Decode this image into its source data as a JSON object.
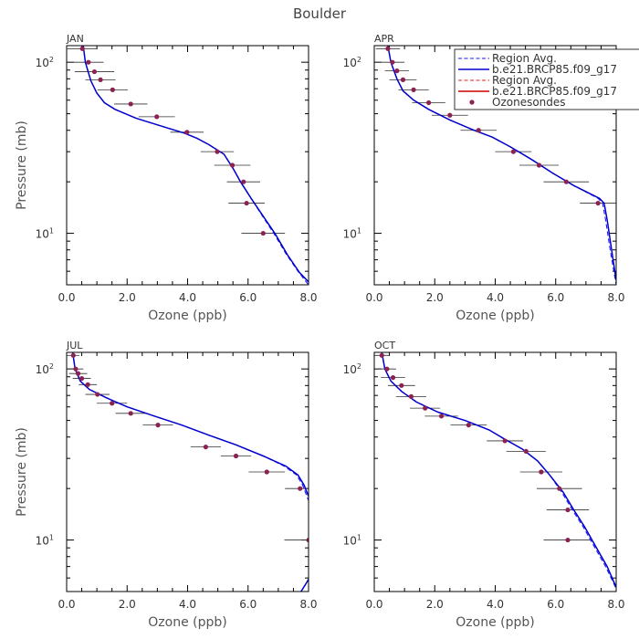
{
  "figure_title": "Boulder",
  "chart_data": [
    {
      "type": "line",
      "panel": "JAN",
      "xlabel": "Ozone (ppb)",
      "ylabel": "Pressure (mb)",
      "xlim": [
        0,
        8
      ],
      "x_ticks": [
        "0.0",
        "2.0",
        "4.0",
        "6.0",
        "8.0"
      ],
      "ylim_mb": [
        125,
        5
      ],
      "y_scale": "log",
      "y_tick_labels": [
        {
          "value": 10,
          "base": "10",
          "exp": "1"
        },
        {
          "value": 100,
          "base": "10",
          "exp": "2"
        }
      ],
      "series": [
        {
          "name": "Region Avg.",
          "style": "dashed",
          "color": "#1a1aff",
          "points": [
            [
              0.55,
              125
            ],
            [
              0.62,
              100
            ],
            [
              0.8,
              78
            ],
            [
              1.0,
              66
            ],
            [
              1.25,
              58
            ],
            [
              1.6,
              53
            ],
            [
              2.3,
              47
            ],
            [
              3.2,
              42
            ],
            [
              3.9,
              38.5
            ],
            [
              4.3,
              36
            ],
            [
              4.7,
              33
            ],
            [
              5.2,
              29
            ],
            [
              5.5,
              24
            ],
            [
              5.75,
              20
            ],
            [
              6.1,
              16
            ],
            [
              6.45,
              12.8
            ],
            [
              6.85,
              10
            ],
            [
              7.25,
              7.6
            ],
            [
              7.65,
              6
            ],
            [
              8.0,
              5.0
            ]
          ]
        },
        {
          "name": "b.e21.BRCP85.f09_g17",
          "style": "solid",
          "color": "#0000cc",
          "points": [
            [
              0.55,
              125
            ],
            [
              0.62,
              100
            ],
            [
              0.8,
              78
            ],
            [
              1.0,
              66
            ],
            [
              1.25,
              58
            ],
            [
              1.6,
              53
            ],
            [
              2.3,
              47
            ],
            [
              3.2,
              42
            ],
            [
              3.9,
              38.5
            ],
            [
              4.3,
              36
            ],
            [
              4.7,
              33
            ],
            [
              5.2,
              29
            ],
            [
              5.5,
              24
            ],
            [
              5.75,
              20
            ],
            [
              6.1,
              16
            ],
            [
              6.5,
              12.6
            ],
            [
              6.9,
              9.9
            ],
            [
              7.3,
              7.5
            ],
            [
              7.7,
              5.9
            ],
            [
              8.0,
              5.2
            ]
          ]
        }
      ],
      "ozonesondes": [
        {
          "x": 0.52,
          "p": 120,
          "err": 0.5
        },
        {
          "x": 0.72,
          "p": 100,
          "err": 0.5
        },
        {
          "x": 0.92,
          "p": 88,
          "err": 0.65
        },
        {
          "x": 1.12,
          "p": 79,
          "err": 0.5
        },
        {
          "x": 1.52,
          "p": 69,
          "err": 0.5
        },
        {
          "x": 2.12,
          "p": 57,
          "err": 0.55
        },
        {
          "x": 2.98,
          "p": 48,
          "err": 0.6
        },
        {
          "x": 3.98,
          "p": 39,
          "err": 0.55
        },
        {
          "x": 4.98,
          "p": 30,
          "err": 0.55
        },
        {
          "x": 5.48,
          "p": 25,
          "err": 0.6
        },
        {
          "x": 5.85,
          "p": 20,
          "err": 0.55
        },
        {
          "x": 5.95,
          "p": 15,
          "err": 0.6
        },
        {
          "x": 6.5,
          "p": 10,
          "err": 0.72
        }
      ]
    },
    {
      "type": "line",
      "panel": "APR",
      "xlabel": "Ozone (ppb)",
      "ylabel": "",
      "xlim": [
        0,
        8
      ],
      "x_ticks": [
        "0.0",
        "2.0",
        "4.0",
        "6.0",
        "8.0"
      ],
      "ylim_mb": [
        125,
        5
      ],
      "y_scale": "log",
      "y_tick_labels": [
        {
          "value": 10,
          "base": "10",
          "exp": "1"
        },
        {
          "value": 100,
          "base": "10",
          "exp": "2"
        }
      ],
      "series": [
        {
          "name": "Region Avg.",
          "style": "dashed",
          "color": "#1a1aff",
          "points": [
            [
              0.45,
              125
            ],
            [
              0.55,
              100
            ],
            [
              0.75,
              80
            ],
            [
              0.95,
              68
            ],
            [
              1.3,
              60
            ],
            [
              1.8,
              53
            ],
            [
              2.5,
              46
            ],
            [
              3.3,
              40
            ],
            [
              3.9,
              36.5
            ],
            [
              4.5,
              32
            ],
            [
              5.2,
              27
            ],
            [
              5.9,
              22.5
            ],
            [
              6.6,
              19
            ],
            [
              7.4,
              16
            ],
            [
              7.55,
              15
            ],
            [
              7.65,
              12
            ],
            [
              7.8,
              8
            ],
            [
              8.0,
              5.0
            ]
          ]
        },
        {
          "name": "b.e21.BRCP85.f09_g17",
          "style": "solid",
          "color": "#0000cc",
          "points": [
            [
              0.45,
              125
            ],
            [
              0.55,
              100
            ],
            [
              0.75,
              80
            ],
            [
              0.95,
              68
            ],
            [
              1.3,
              60
            ],
            [
              1.8,
              53
            ],
            [
              2.5,
              46
            ],
            [
              3.3,
              40
            ],
            [
              3.9,
              36.5
            ],
            [
              4.5,
              32
            ],
            [
              5.2,
              27
            ],
            [
              5.9,
              22.5
            ],
            [
              6.6,
              19
            ],
            [
              7.45,
              16
            ],
            [
              7.6,
              15
            ],
            [
              7.7,
              12
            ],
            [
              7.85,
              8
            ],
            [
              8.0,
              5.3
            ]
          ]
        }
      ],
      "ozonesondes": [
        {
          "x": 0.45,
          "p": 120,
          "err": 0.4
        },
        {
          "x": 0.6,
          "p": 100,
          "err": 0.4
        },
        {
          "x": 0.75,
          "p": 89,
          "err": 0.4
        },
        {
          "x": 0.95,
          "p": 79,
          "err": 0.45
        },
        {
          "x": 1.3,
          "p": 69,
          "err": 0.5
        },
        {
          "x": 1.8,
          "p": 58,
          "err": 0.55
        },
        {
          "x": 2.5,
          "p": 49,
          "err": 0.6
        },
        {
          "x": 3.45,
          "p": 40,
          "err": 0.6
        },
        {
          "x": 4.6,
          "p": 30,
          "err": 0.6
        },
        {
          "x": 5.45,
          "p": 25,
          "err": 0.65
        },
        {
          "x": 6.35,
          "p": 20,
          "err": 0.75
        },
        {
          "x": 7.4,
          "p": 15,
          "err": 0.6
        }
      ]
    },
    {
      "type": "line",
      "panel": "JUL",
      "xlabel": "Ozone (ppb)",
      "ylabel": "Pressure (mb)",
      "xlim": [
        0,
        8
      ],
      "x_ticks": [
        "0.0",
        "2.0",
        "4.0",
        "6.0",
        "8.0"
      ],
      "ylim_mb": [
        125,
        5
      ],
      "y_scale": "log",
      "y_tick_labels": [
        {
          "value": 10,
          "base": "10",
          "exp": "1"
        },
        {
          "value": 100,
          "base": "10",
          "exp": "2"
        }
      ],
      "series": [
        {
          "name": "Region Avg.",
          "style": "dashed",
          "color": "#1a1aff",
          "points": [
            [
              0.2,
              125
            ],
            [
              0.28,
              100
            ],
            [
              0.45,
              85
            ],
            [
              0.75,
              76
            ],
            [
              1.3,
              68
            ],
            [
              2.0,
              60
            ],
            [
              2.9,
              53
            ],
            [
              3.8,
              47
            ],
            [
              4.7,
              41
            ],
            [
              5.6,
              36
            ],
            [
              6.5,
              31
            ],
            [
              7.2,
              27
            ],
            [
              7.6,
              24
            ],
            [
              7.8,
              21
            ],
            [
              8.0,
              17
            ]
          ]
        },
        {
          "name": "b.e21.BRCP85.f09_g17",
          "style": "solid",
          "color": "#0000cc",
          "points": [
            [
              0.2,
              125
            ],
            [
              0.28,
              100
            ],
            [
              0.45,
              85
            ],
            [
              0.75,
              76
            ],
            [
              1.3,
              68
            ],
            [
              2.0,
              60
            ],
            [
              2.9,
              53
            ],
            [
              3.8,
              47
            ],
            [
              4.7,
              41
            ],
            [
              5.6,
              36
            ],
            [
              6.5,
              31
            ],
            [
              7.25,
              27
            ],
            [
              7.65,
              24
            ],
            [
              7.85,
              21
            ],
            [
              8.0,
              18
            ]
          ]
        },
        {
          "name": "b.e21.BRCP85.f09_g17 (upper)",
          "style": "solid",
          "color": "#0000cc",
          "points": [
            [
              7.75,
              5.0
            ],
            [
              7.9,
              5.5
            ],
            [
              8.0,
              5.9
            ]
          ]
        }
      ],
      "ozonesondes": [
        {
          "x": 0.22,
          "p": 120,
          "err": 0.2
        },
        {
          "x": 0.3,
          "p": 100,
          "err": 0.25
        },
        {
          "x": 0.38,
          "p": 94,
          "err": 0.3
        },
        {
          "x": 0.5,
          "p": 88,
          "err": 0.3
        },
        {
          "x": 0.7,
          "p": 81,
          "err": 0.3
        },
        {
          "x": 1.02,
          "p": 71,
          "err": 0.4
        },
        {
          "x": 1.5,
          "p": 63,
          "err": 0.5
        },
        {
          "x": 2.12,
          "p": 55,
          "err": 0.5
        },
        {
          "x": 3.02,
          "p": 47,
          "err": 0.5
        },
        {
          "x": 4.6,
          "p": 35,
          "err": 0.5
        },
        {
          "x": 5.6,
          "p": 31,
          "err": 0.5
        },
        {
          "x": 6.62,
          "p": 25,
          "err": 0.6
        },
        {
          "x": 7.72,
          "p": 20,
          "err": 0.5
        },
        {
          "x": 8.0,
          "p": 10,
          "err": 0.8
        }
      ]
    },
    {
      "type": "line",
      "panel": "OCT",
      "xlabel": "Ozone (ppb)",
      "ylabel": "",
      "xlim": [
        0,
        8
      ],
      "x_ticks": [
        "0.0",
        "2.0",
        "4.0",
        "6.0",
        "8.0"
      ],
      "ylim_mb": [
        125,
        5
      ],
      "y_scale": "log",
      "y_tick_labels": [
        {
          "value": 10,
          "base": "10",
          "exp": "1"
        },
        {
          "value": 100,
          "base": "10",
          "exp": "2"
        }
      ],
      "series": [
        {
          "name": "Region Avg.",
          "style": "dashed",
          "color": "#1a1aff",
          "points": [
            [
              0.25,
              125
            ],
            [
              0.35,
              100
            ],
            [
              0.55,
              85
            ],
            [
              0.9,
              74
            ],
            [
              1.4,
              64
            ],
            [
              2.1,
              56
            ],
            [
              3.0,
              50
            ],
            [
              3.8,
              44
            ],
            [
              4.3,
              39
            ],
            [
              4.9,
              34
            ],
            [
              5.4,
              29
            ],
            [
              5.8,
              24
            ],
            [
              6.2,
              19
            ],
            [
              6.55,
              15
            ],
            [
              6.9,
              12
            ],
            [
              7.3,
              9
            ],
            [
              7.65,
              7
            ],
            [
              8.0,
              5.2
            ]
          ]
        },
        {
          "name": "b.e21.BRCP85.f09_g17",
          "style": "solid",
          "color": "#0000cc",
          "points": [
            [
              0.25,
              125
            ],
            [
              0.35,
              100
            ],
            [
              0.55,
              85
            ],
            [
              0.9,
              74
            ],
            [
              1.4,
              64
            ],
            [
              2.1,
              56
            ],
            [
              3.0,
              50
            ],
            [
              3.8,
              44
            ],
            [
              4.3,
              39
            ],
            [
              4.9,
              34
            ],
            [
              5.4,
              29
            ],
            [
              5.8,
              24
            ],
            [
              6.25,
              19
            ],
            [
              6.6,
              15
            ],
            [
              6.95,
              12
            ],
            [
              7.35,
              9
            ],
            [
              7.7,
              7
            ],
            [
              8.0,
              5.3
            ]
          ]
        }
      ],
      "ozonesondes": [
        {
          "x": 0.25,
          "p": 120,
          "err": 0.25
        },
        {
          "x": 0.42,
          "p": 100,
          "err": 0.3
        },
        {
          "x": 0.62,
          "p": 89,
          "err": 0.4
        },
        {
          "x": 0.9,
          "p": 80,
          "err": 0.45
        },
        {
          "x": 1.22,
          "p": 69,
          "err": 0.5
        },
        {
          "x": 1.68,
          "p": 59,
          "err": 0.5
        },
        {
          "x": 2.22,
          "p": 53,
          "err": 0.55
        },
        {
          "x": 3.12,
          "p": 47,
          "err": 0.6
        },
        {
          "x": 4.32,
          "p": 38,
          "err": 0.6
        },
        {
          "x": 5.02,
          "p": 33,
          "err": 0.65
        },
        {
          "x": 5.52,
          "p": 25,
          "err": 0.7
        },
        {
          "x": 6.12,
          "p": 20,
          "err": 0.75
        },
        {
          "x": 6.4,
          "p": 15,
          "err": 0.7
        },
        {
          "x": 6.4,
          "p": 10,
          "err": 0.8
        }
      ]
    }
  ],
  "legend": {
    "entries": [
      {
        "label": "Region Avg.",
        "style": "dashed",
        "color": "#1a1aff"
      },
      {
        "label": "b.e21.BRCP85.f09_g17",
        "style": "solid",
        "color": "#0000cc"
      },
      {
        "label": "Region Avg.",
        "style": "dashed",
        "color": "#e02020"
      },
      {
        "label": "b.e21.BRCP85.f09_g17",
        "style": "solid",
        "color": "#cc0000"
      },
      {
        "label": "Ozonesondes",
        "style": "dot",
        "color": "#8b2252"
      }
    ]
  },
  "colors": {
    "axis": "#000000",
    "errorbar": "#333333",
    "marker": "#8b2252"
  }
}
